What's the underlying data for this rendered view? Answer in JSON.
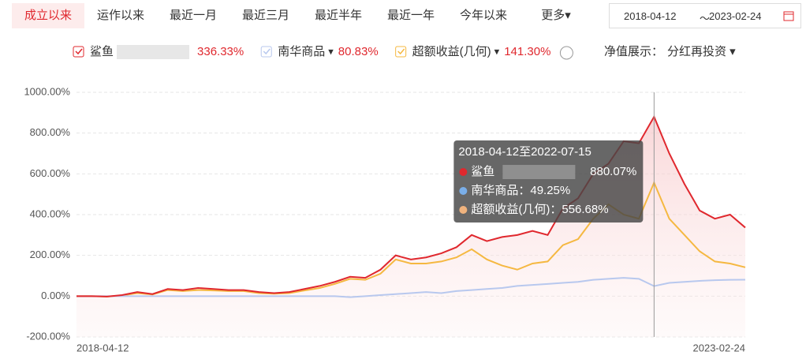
{
  "toolbar": {
    "tabs": [
      "成立以来",
      "运作以来",
      "最近一月",
      "最近三月",
      "最近半年",
      "最近一年",
      "今年以来",
      "更多▾"
    ],
    "date_start": "2018-04-12",
    "date_sep": "～",
    "date_end": "2023-02-24",
    "display_label": "净值展示：",
    "display_value": "分红再投资 ▾"
  },
  "chart_data": {
    "type": "line",
    "categories": [
      "2018-04-12",
      null,
      null,
      null,
      null,
      null,
      null,
      null,
      null,
      null,
      null,
      null,
      null,
      null,
      null,
      null,
      null,
      null,
      null,
      null,
      null,
      null,
      null,
      null,
      null,
      null,
      null,
      null,
      null,
      null,
      null,
      null,
      null,
      null,
      null,
      null,
      null,
      null,
      null,
      null,
      null,
      null,
      null,
      null,
      "2023-02-24"
    ],
    "series": [
      {
        "name": "鲨鱼",
        "legend_suffix": "",
        "return_label": "336.33%",
        "color": "#e0282e",
        "area": true,
        "values": [
          0,
          0,
          -2,
          5,
          20,
          10,
          35,
          30,
          40,
          35,
          30,
          30,
          20,
          15,
          20,
          35,
          50,
          70,
          95,
          90,
          130,
          200,
          180,
          190,
          210,
          240,
          300,
          270,
          290,
          300,
          320,
          300,
          430,
          480,
          600,
          650,
          760,
          750,
          880.07,
          700,
          550,
          420,
          380,
          400,
          336.33
        ]
      },
      {
        "name": "南华商品",
        "legend_suffix": "▾",
        "return_label": "80.83%",
        "color": "#b8c8ee",
        "area": false,
        "values": [
          0,
          0,
          0,
          0,
          0,
          0,
          0,
          0,
          0,
          0,
          0,
          0,
          0,
          0,
          0,
          0,
          0,
          0,
          -5,
          0,
          5,
          10,
          15,
          20,
          15,
          25,
          30,
          35,
          40,
          50,
          55,
          60,
          65,
          70,
          80,
          85,
          90,
          85,
          49.25,
          65,
          70,
          75,
          78,
          80,
          80.83
        ]
      },
      {
        "name": "超额收益(几何)",
        "legend_suffix": "▾",
        "return_label": "141.30%",
        "color": "#f5b841",
        "area": false,
        "values": [
          0,
          0,
          -2,
          3,
          15,
          8,
          30,
          25,
          30,
          28,
          25,
          25,
          15,
          12,
          15,
          28,
          40,
          60,
          85,
          80,
          110,
          180,
          160,
          160,
          170,
          190,
          230,
          180,
          150,
          130,
          160,
          170,
          250,
          280,
          380,
          450,
          400,
          380,
          556.68,
          380,
          300,
          220,
          170,
          160,
          141.3
        ]
      }
    ],
    "ylim": [
      -200,
      1000
    ],
    "yticks": [
      {
        "value": -200,
        "label": "-200.00%"
      },
      {
        "value": 0,
        "label": "0.00%"
      },
      {
        "value": 200,
        "label": "200.00%"
      },
      {
        "value": 400,
        "label": "400.00%"
      },
      {
        "value": 600,
        "label": "600.00%"
      },
      {
        "value": 800,
        "label": "800.00%"
      },
      {
        "value": 1000,
        "label": "1000.00%"
      }
    ],
    "grid": true,
    "tooltip": {
      "index": 38,
      "title": "2018-04-12至2022-07-15",
      "rows": [
        {
          "label": "鲨鱼",
          "value": "880.07%",
          "color": "#e0282e"
        },
        {
          "label": "南华商品：49.25%",
          "value": "",
          "color": "#7aaee8"
        },
        {
          "label": "超额收益(几何)：556.68%",
          "value": "",
          "color": "#f0b37e"
        }
      ]
    }
  }
}
